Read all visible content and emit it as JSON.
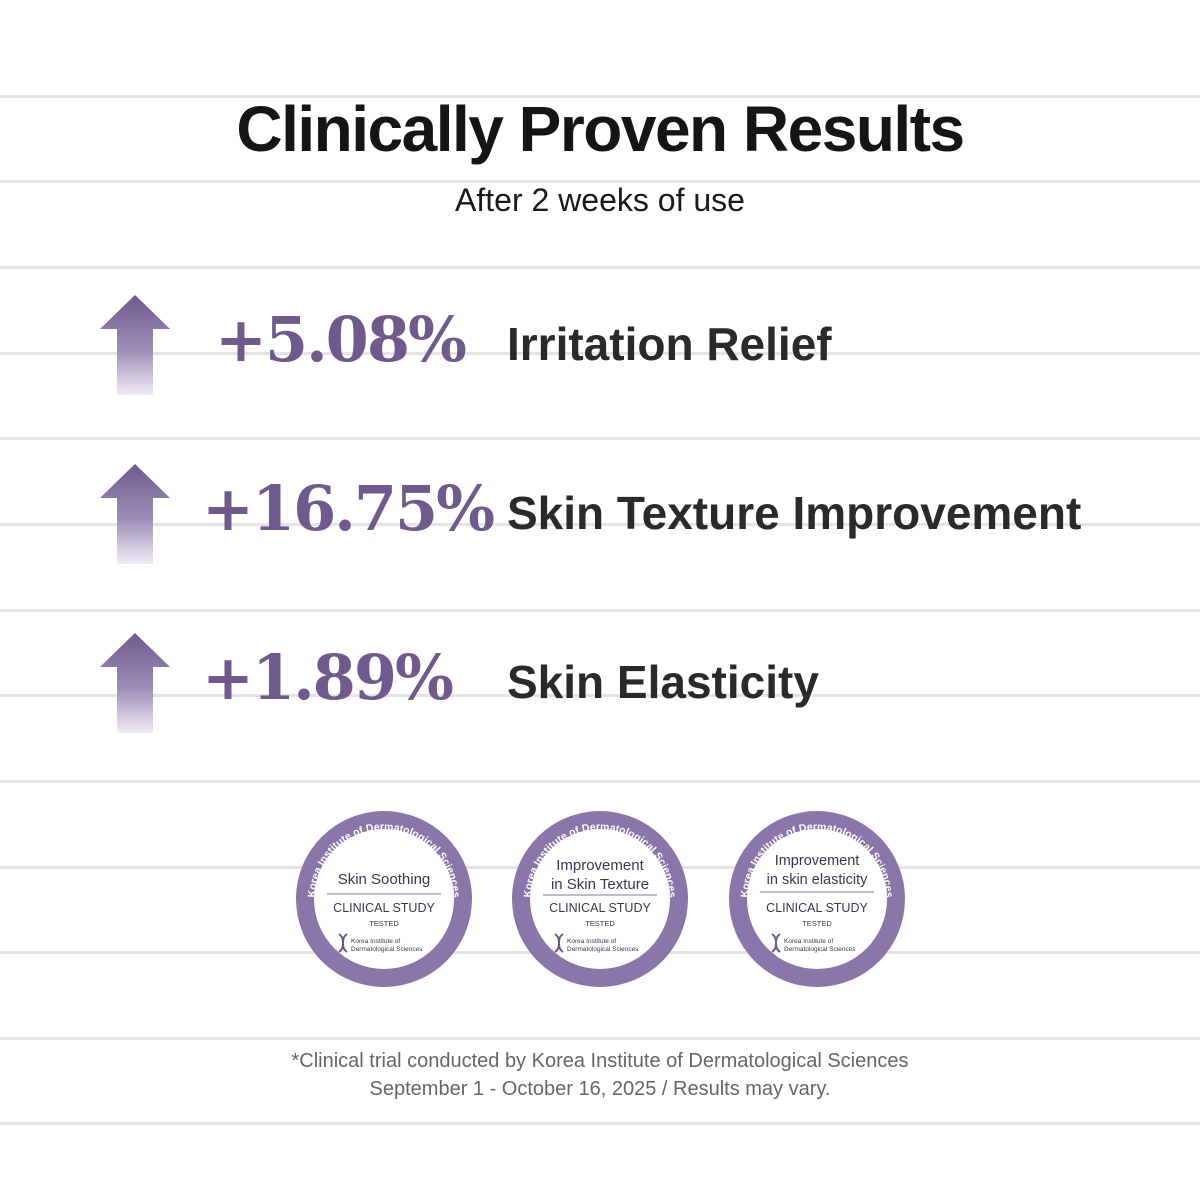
{
  "header": {
    "title": "Clinically Proven Results",
    "subtitle": "After 2 weeks of use"
  },
  "results": [
    {
      "value": "+5.08%",
      "label": "Irritation Relief"
    },
    {
      "value": "+16.75%",
      "label": "Skin Texture Improvement"
    },
    {
      "value": "+1.89%",
      "label": "Skin Elasticity"
    }
  ],
  "badges": [
    {
      "ring_text": "Korea Institute of Dermatological Sciences",
      "claim_line1": "Skin Soothing",
      "claim_line2": "",
      "study": "CLINICAL STUDY",
      "tested": "TESTED",
      "org_line1": "Korea Institute of",
      "org_line2": "Dermatological Sciences"
    },
    {
      "ring_text": "Korea Institute of Dermatological Sciences",
      "claim_line1": "Improvement",
      "claim_line2": "in Skin Texture",
      "study": "CLINICAL STUDY",
      "tested": "TESTED",
      "org_line1": "Korea Institute of",
      "org_line2": "Dermatological Sciences"
    },
    {
      "ring_text": "Korea Institute of Dermatological Sciences",
      "claim_line1": "Improvement",
      "claim_line2": "in skin elasticity",
      "study": "CLINICAL STUDY",
      "tested": "TESTED",
      "org_line1": "Korea Institute of",
      "org_line2": "Dermatological Sciences"
    }
  ],
  "footnote": {
    "line1": "*Clinical trial conducted by Korea Institute of Dermatological Sciences",
    "line2": "September 1 - October 16, 2025 / Results may vary."
  },
  "icons": {
    "arrow": "up-arrow-icon",
    "logo": "dna-logo-icon"
  },
  "colors": {
    "accent": "#6f5a8d",
    "badge_ring": "#8a76a8",
    "heading": "#151515",
    "body": "#2a2a2a",
    "rule": "#e4e4e4",
    "footnote": "#666666"
  }
}
